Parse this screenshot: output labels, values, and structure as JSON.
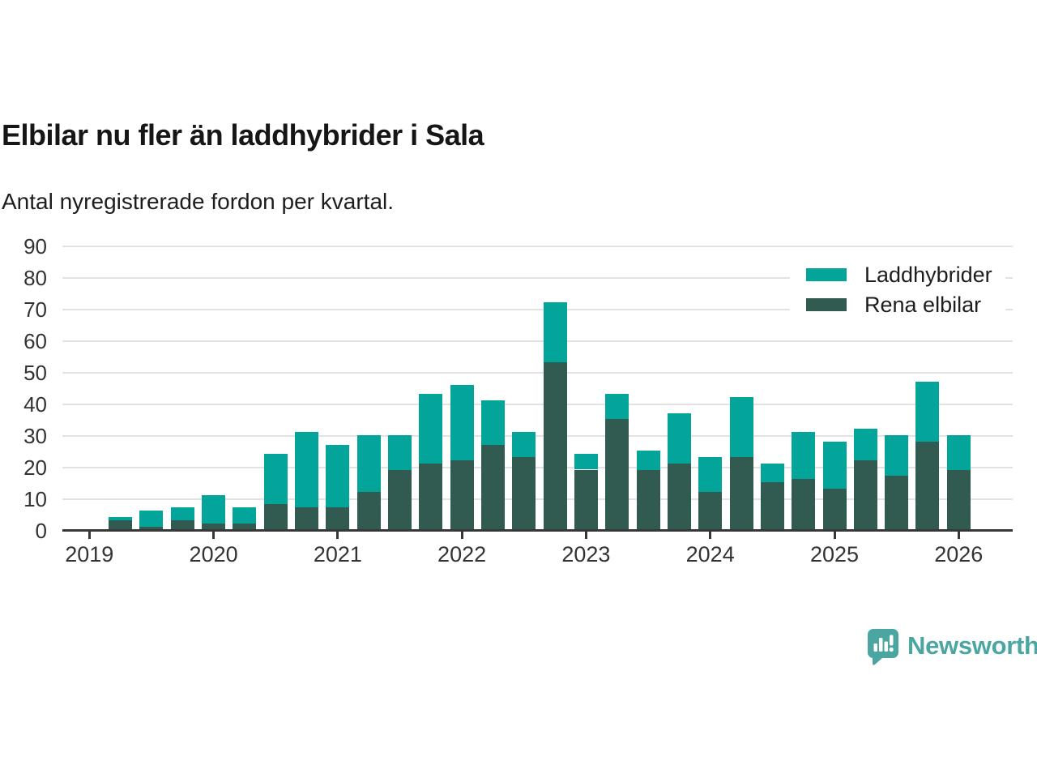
{
  "title": "Elbilar nu fler än laddhybrider i Sala",
  "subtitle": "Antal nyregistrerade fordon per kvartal.",
  "colors": {
    "laddhybrider": "#03a59b",
    "rena_elbilar": "#315a50",
    "axis": "#383838",
    "gridline": "#e2e2e2",
    "text": "#333333",
    "brand_teal": "#4ba6a1"
  },
  "legend": {
    "items": [
      {
        "label": "Laddhybrider",
        "color_key": "laddhybrider"
      },
      {
        "label": "Rena elbilar",
        "color_key": "rena_elbilar"
      }
    ]
  },
  "branding": {
    "name": "Newsworthy"
  },
  "chart_data": {
    "type": "bar",
    "stacked": true,
    "title": "Elbilar nu fler än laddhybrider i Sala",
    "subtitle": "Antal nyregistrerade fordon per kvartal.",
    "xlabel": "",
    "ylabel": "",
    "ylim": [
      0,
      90
    ],
    "y_ticks": [
      0,
      10,
      20,
      30,
      40,
      50,
      60,
      70,
      80,
      90
    ],
    "x_tick_labels": [
      "2019",
      "2020",
      "2021",
      "2022",
      "2023",
      "2024",
      "2025",
      "2026"
    ],
    "grid": true,
    "legend_position": "top-right",
    "categories": [
      "2019 Q2",
      "2019 Q3",
      "2019 Q4",
      "2020 Q1",
      "2020 Q2",
      "2020 Q3",
      "2020 Q4",
      "2021 Q1",
      "2021 Q2",
      "2021 Q3",
      "2021 Q4",
      "2022 Q1",
      "2022 Q2",
      "2022 Q3",
      "2022 Q4",
      "2023 Q1",
      "2023 Q2",
      "2023 Q3",
      "2023 Q4",
      "2024 Q1",
      "2024 Q2",
      "2024 Q3",
      "2024 Q4",
      "2025 Q1",
      "2025 Q2",
      "2025 Q3",
      "2025 Q4",
      "2026 Q1"
    ],
    "series": [
      {
        "name": "Rena elbilar",
        "color_key": "rena_elbilar",
        "values": [
          3,
          1,
          3,
          2,
          2,
          8,
          7,
          7,
          12,
          19,
          21,
          22,
          27,
          23,
          53,
          19,
          35,
          19,
          21,
          12,
          23,
          15,
          16,
          13,
          22,
          17,
          28,
          19
        ]
      },
      {
        "name": "Laddhybrider",
        "color_key": "laddhybrider",
        "values": [
          1,
          5,
          4,
          9,
          5,
          16,
          24,
          20,
          18,
          11,
          22,
          24,
          14,
          8,
          19,
          5,
          8,
          6,
          16,
          11,
          19,
          6,
          15,
          15,
          10,
          13,
          19,
          11
        ]
      }
    ],
    "totals": [
      4,
      6,
      7,
      11,
      7,
      24,
      31,
      27,
      30,
      30,
      43,
      46,
      41,
      31,
      72,
      24,
      43,
      25,
      37,
      23,
      42,
      21,
      31,
      28,
      32,
      30,
      47,
      30
    ]
  }
}
